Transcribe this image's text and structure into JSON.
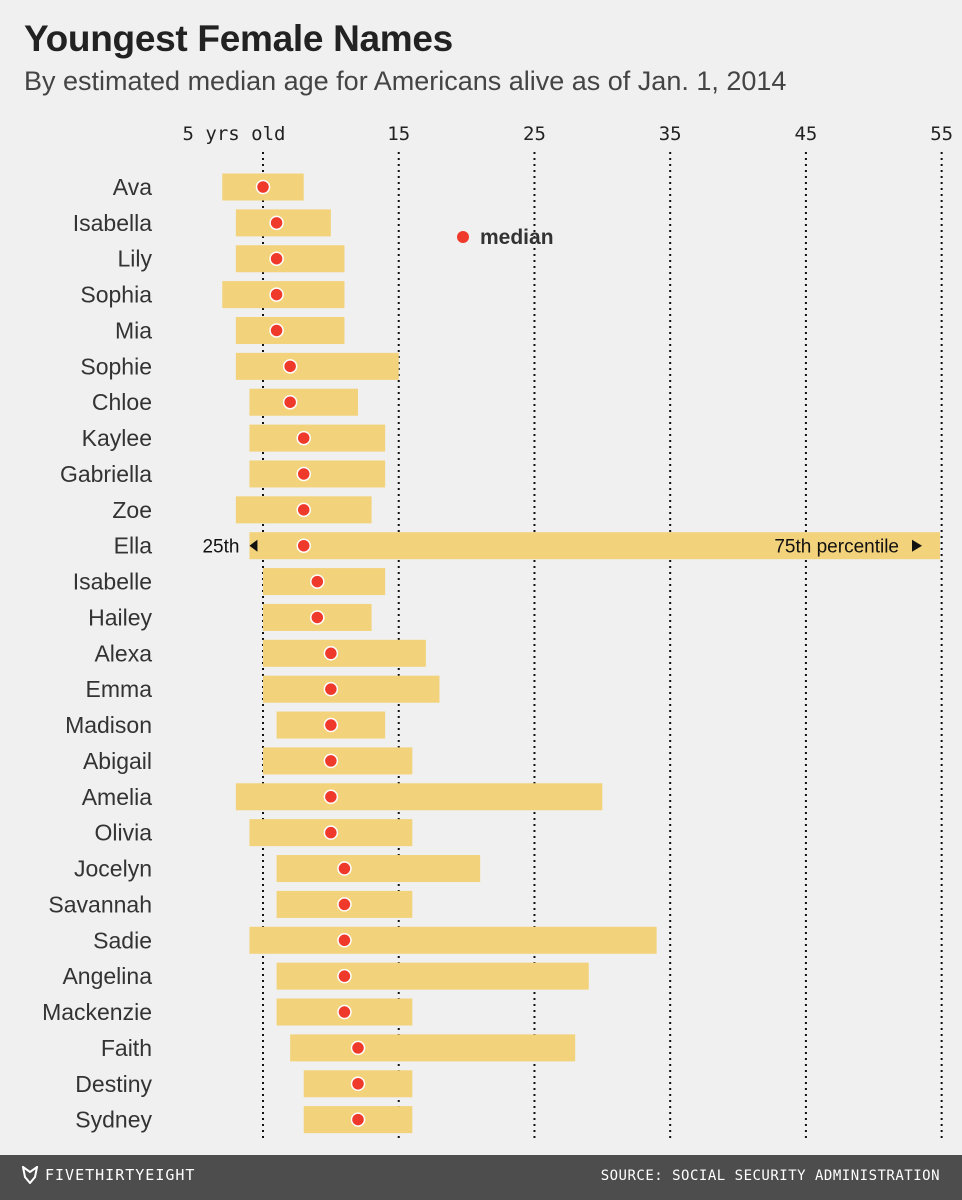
{
  "header": {
    "title": "Youngest Female Names",
    "subtitle": "By estimated median age for Americans alive as of Jan. 1, 2014"
  },
  "colors": {
    "background": "#f0f0f0",
    "bar": "#f2d27a",
    "median_dot": "#ef3a2b",
    "gridline": "#111111",
    "footer": "#4d4d4d"
  },
  "chart_data": {
    "type": "bar",
    "orientation": "horizontal-range",
    "title": "Youngest Female Names",
    "subtitle": "By estimated median age for Americans alive as of Jan. 1, 2014",
    "xlabel": "",
    "ylabel": "",
    "xlim": [
      -2,
      56.5
    ],
    "x_ticks": [
      {
        "value": 5,
        "label": "5 yrs old"
      },
      {
        "value": 15,
        "label": "15"
      },
      {
        "value": 25,
        "label": "25"
      },
      {
        "value": 35,
        "label": "35"
      },
      {
        "value": 45,
        "label": "45"
      },
      {
        "value": 55,
        "label": "55"
      }
    ],
    "grid": "dotted vertical at ticks",
    "legend": {
      "label": "median",
      "position": "top-center"
    },
    "annotations": {
      "row": "Ella",
      "left_label": "25th",
      "right_label": "75th percentile"
    },
    "categories": [
      "Ava",
      "Isabella",
      "Lily",
      "Sophia",
      "Mia",
      "Sophie",
      "Chloe",
      "Kaylee",
      "Gabriella",
      "Zoe",
      "Ella",
      "Isabelle",
      "Hailey",
      "Alexa",
      "Emma",
      "Madison",
      "Abigail",
      "Amelia",
      "Olivia",
      "Jocelyn",
      "Savannah",
      "Sadie",
      "Angelina",
      "Mackenzie",
      "Faith",
      "Destiny",
      "Sydney"
    ],
    "series": [
      {
        "name": "25th percentile",
        "values": [
          2,
          3,
          3,
          2,
          3,
          3,
          4,
          4,
          4,
          3,
          4,
          5,
          5,
          5,
          5,
          6,
          5,
          3,
          4,
          6,
          6,
          4,
          6,
          6,
          7,
          8,
          8
        ]
      },
      {
        "name": "median",
        "values": [
          5,
          6,
          6,
          6,
          6,
          7,
          7,
          8,
          8,
          8,
          8,
          9,
          9,
          10,
          10,
          10,
          10,
          10,
          10,
          11,
          11,
          11,
          11,
          11,
          12,
          12,
          12
        ]
      },
      {
        "name": "75th percentile",
        "values": [
          8,
          10,
          11,
          11,
          11,
          15,
          12,
          14,
          14,
          13,
          57,
          14,
          13,
          17,
          18,
          14,
          16,
          30,
          16,
          21,
          16,
          34,
          29,
          16,
          28,
          16,
          16
        ]
      }
    ]
  },
  "footer": {
    "brand": "FIVETHIRTYEIGHT",
    "source": "SOURCE: SOCIAL SECURITY ADMINISTRATION"
  }
}
